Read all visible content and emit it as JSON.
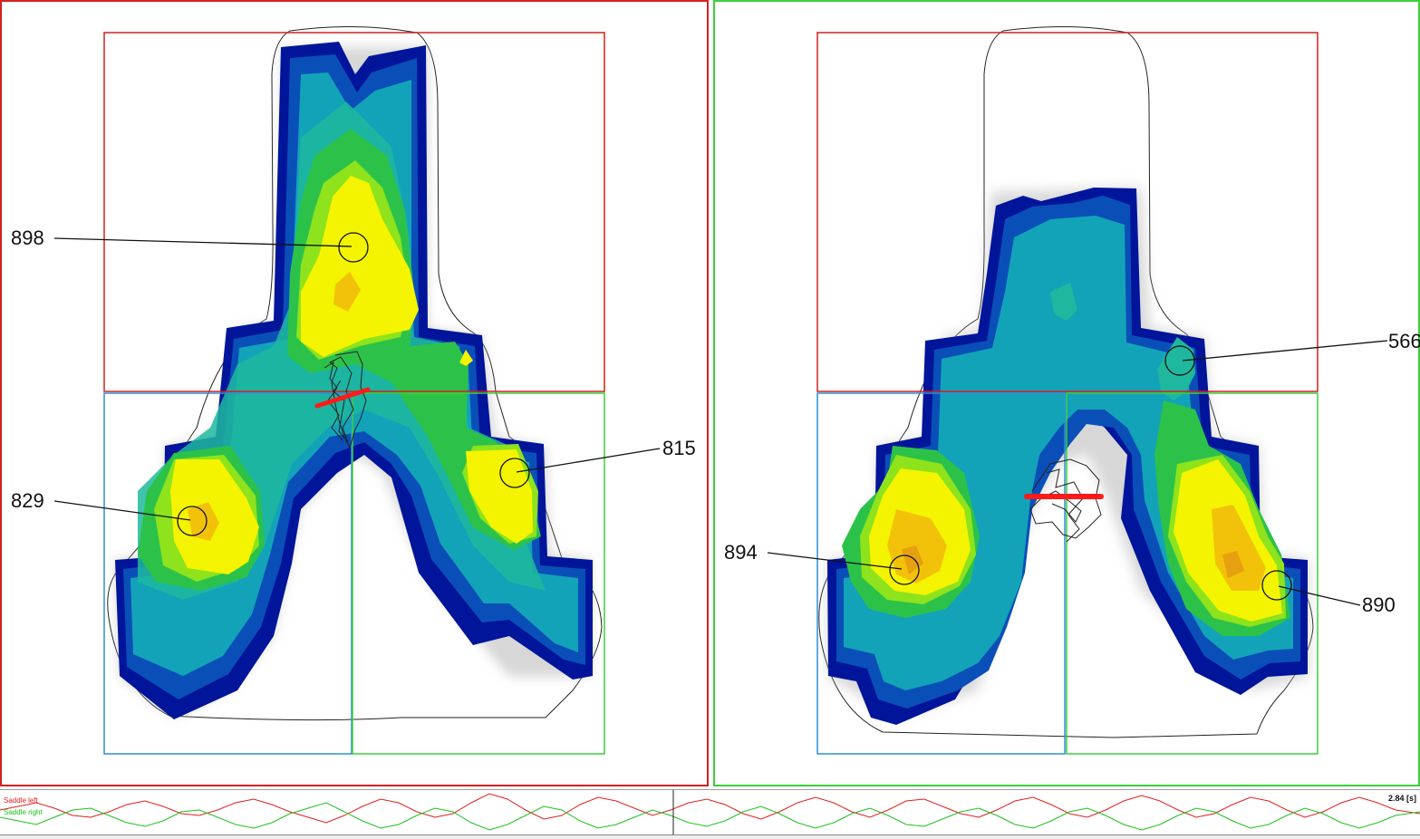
{
  "panels": {
    "left": {
      "border_color": "#d42020",
      "peaks": [
        {
          "id": "front",
          "value": "898"
        },
        {
          "id": "rear-left",
          "value": "829"
        },
        {
          "id": "rear-right",
          "value": "815"
        }
      ]
    },
    "right": {
      "border_color": "#3ccf3c",
      "peaks": [
        {
          "id": "front",
          "value": "566"
        },
        {
          "id": "rear-left",
          "value": "894"
        },
        {
          "id": "rear-right",
          "value": "890"
        }
      ]
    }
  },
  "zones": {
    "front_color": "#d42020",
    "rear_left_color": "#2f8fd6",
    "rear_right_color": "#3ccf3c"
  },
  "pressure_scale_colors": [
    "#00159a",
    "#0a4fb8",
    "#13a3b8",
    "#1fb89e",
    "#2cc24a",
    "#8ee31c",
    "#f4f400",
    "#f2c20a",
    "#e6a010"
  ],
  "timeline": {
    "series": [
      {
        "name": "Saddle left",
        "color": "#e02020"
      },
      {
        "name": "Saddle right",
        "color": "#20c020"
      }
    ],
    "time_readout": "2.84 [s]"
  }
}
